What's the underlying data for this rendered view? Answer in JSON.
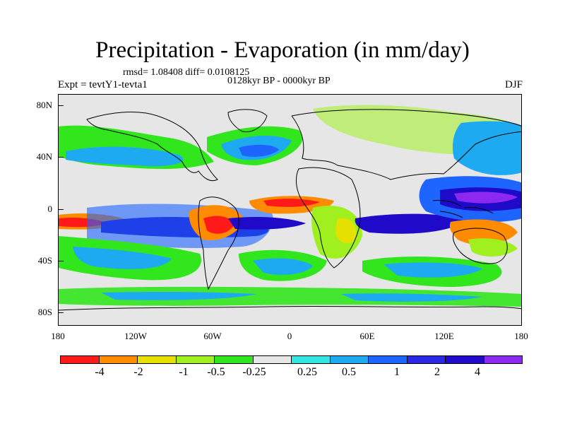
{
  "title": "Precipitation - Evaporation (in mm/day)",
  "subtitle_stats": "rmsd= 1.08408  diff= 0.0108125",
  "subtitle_period": "0128kyr BP - 0000kyr BP",
  "experiment": "Expt = tevtY1-tevta1",
  "season": "DJF",
  "map": {
    "lat_labels": [
      "80N",
      "40N",
      "0",
      "40S",
      "80S"
    ],
    "lon_labels": [
      "180",
      "120W",
      "60W",
      "0",
      "60E",
      "120E",
      "180"
    ],
    "background_color": "#e6e6e6"
  },
  "colorbar": {
    "colors": [
      "#ff1a1a",
      "#ff8c00",
      "#e6e000",
      "#a0f020",
      "#32e61e",
      "#e6e6e6",
      "#33e6e6",
      "#1eaaf0",
      "#1e64ff",
      "#2828e6",
      "#1e0ac8",
      "#8c28f0"
    ],
    "labels": [
      "-4",
      "-2",
      "-1",
      "-0.5",
      "-0.25",
      "0.25",
      "0.5",
      "1",
      "2",
      "4"
    ]
  }
}
